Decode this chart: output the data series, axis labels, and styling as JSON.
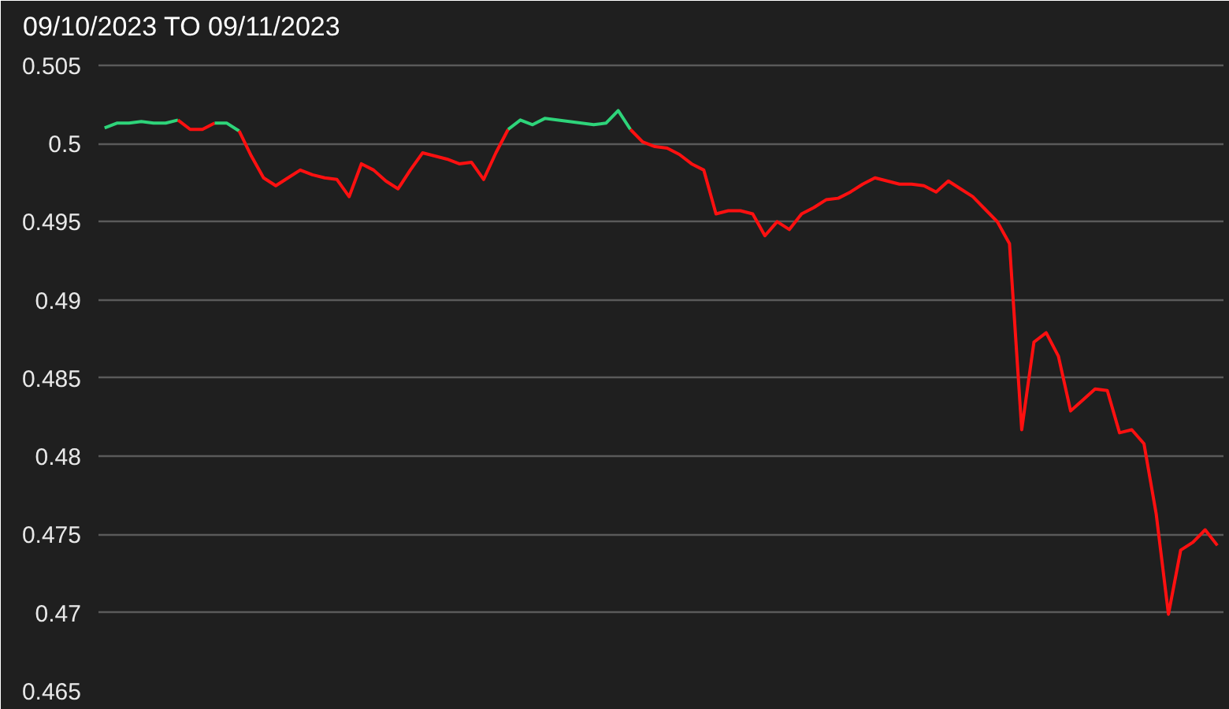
{
  "chart_data": {
    "type": "line",
    "title": "09/10/2023 TO 09/11/2023",
    "categories": [
      null,
      null,
      null,
      null,
      null,
      null,
      null,
      null,
      null,
      null,
      null,
      null,
      null,
      null,
      null,
      null,
      null,
      null,
      null,
      null,
      null,
      null,
      null,
      null,
      null,
      null,
      null,
      null,
      null,
      null,
      null,
      null,
      null,
      null,
      null,
      null,
      null,
      null,
      null,
      null,
      null,
      null,
      null,
      null,
      null,
      null,
      null,
      null,
      null,
      null,
      null,
      null,
      null,
      null,
      null,
      null,
      null,
      null,
      null,
      null,
      null,
      null,
      null,
      null,
      null,
      null,
      null,
      null,
      null,
      null,
      null,
      null,
      null,
      null,
      null,
      null,
      null,
      null,
      null,
      null,
      null,
      null,
      null,
      null,
      null,
      null,
      null,
      null,
      null,
      null,
      null,
      null
    ],
    "series": [
      {
        "color": "#2ed47a",
        "values": [
          0.501,
          0.5013,
          0.5013,
          0.5014,
          0.5013,
          0.5013,
          0.5015,
          null,
          null,
          null,
          null,
          null,
          null,
          null,
          null,
          null,
          null,
          null,
          null,
          null,
          null,
          null,
          null,
          null,
          null,
          null,
          null,
          null,
          null,
          null,
          null,
          null,
          null,
          null,
          null,
          null,
          null,
          null,
          null,
          null,
          null,
          null,
          null,
          null,
          null,
          null,
          null,
          null,
          null,
          null,
          null,
          null,
          null,
          null,
          null,
          null,
          null,
          null,
          null,
          null,
          null,
          null,
          null,
          null,
          null,
          null,
          null,
          null,
          null,
          null,
          null,
          null,
          null,
          null,
          null,
          null,
          null,
          null,
          null,
          null,
          null,
          null,
          null,
          null,
          null,
          null,
          null,
          null,
          null,
          null,
          null,
          null
        ]
      },
      {
        "color": "#ff1010",
        "values": [
          null,
          null,
          null,
          null,
          null,
          null,
          0.5015,
          0.5009,
          0.5009,
          0.5013,
          null,
          null,
          null,
          null,
          null,
          null,
          null,
          null,
          null,
          null,
          null,
          null,
          null,
          null,
          null,
          null,
          null,
          null,
          null,
          null,
          null,
          null,
          null,
          null,
          null,
          null,
          null,
          null,
          null,
          null,
          null,
          null,
          null,
          null,
          null,
          null,
          null,
          null,
          null,
          null,
          null,
          null,
          null,
          null,
          null,
          null,
          null,
          null,
          null,
          null,
          null,
          null,
          null,
          null,
          null,
          null,
          null,
          null,
          null,
          null,
          null,
          null,
          null,
          null,
          null,
          null,
          null,
          null,
          null,
          null,
          null,
          null,
          null,
          null,
          null,
          null,
          null,
          null,
          null,
          null,
          null,
          null
        ]
      },
      {
        "color": "#2ed47a",
        "values": [
          null,
          null,
          null,
          null,
          null,
          null,
          null,
          null,
          null,
          0.5013,
          0.5013,
          0.5008,
          null,
          null,
          null,
          null,
          null,
          null,
          null,
          null,
          null,
          null,
          null,
          null,
          null,
          null,
          null,
          null,
          null,
          null,
          null,
          null,
          null,
          null,
          null,
          null,
          null,
          null,
          null,
          null,
          null,
          null,
          null,
          null,
          null,
          null,
          null,
          null,
          null,
          null,
          null,
          null,
          null,
          null,
          null,
          null,
          null,
          null,
          null,
          null,
          null,
          null,
          null,
          null,
          null,
          null,
          null,
          null,
          null,
          null,
          null,
          null,
          null,
          null,
          null,
          null,
          null,
          null,
          null,
          null,
          null,
          null,
          null,
          null,
          null,
          null,
          null,
          null,
          null,
          null,
          null,
          null
        ]
      },
      {
        "color": "#ff1010",
        "values": [
          null,
          null,
          null,
          null,
          null,
          null,
          null,
          null,
          null,
          null,
          null,
          0.5008,
          0.4992,
          0.4978,
          0.4973,
          0.4978,
          0.4983,
          0.498,
          0.4978,
          0.4977,
          0.4966,
          0.4987,
          0.4983,
          0.4976,
          0.4971,
          0.4983,
          0.4994,
          0.4992,
          0.499,
          0.4987,
          0.4988,
          0.4977,
          0.4994,
          0.5009,
          null,
          null,
          null,
          null,
          null,
          null,
          null,
          null,
          null,
          null,
          null,
          null,
          null,
          null,
          null,
          null,
          null,
          null,
          null,
          null,
          null,
          null,
          null,
          null,
          null,
          null,
          null,
          null,
          null,
          null,
          null,
          null,
          null,
          null,
          null,
          null,
          null,
          null,
          null,
          null,
          null,
          null,
          null,
          null,
          null,
          null,
          null,
          null,
          null,
          null,
          null,
          null,
          null,
          null,
          null,
          null,
          null,
          null
        ]
      },
      {
        "color": "#2ed47a",
        "values": [
          null,
          null,
          null,
          null,
          null,
          null,
          null,
          null,
          null,
          null,
          null,
          null,
          null,
          null,
          null,
          null,
          null,
          null,
          null,
          null,
          null,
          null,
          null,
          null,
          null,
          null,
          null,
          null,
          null,
          null,
          null,
          null,
          null,
          0.5009,
          0.5015,
          0.5012,
          0.5016,
          0.5015,
          0.5014,
          0.5013,
          0.5012,
          0.5013,
          0.5021,
          0.5009,
          null,
          null,
          null,
          null,
          null,
          null,
          null,
          null,
          null,
          null,
          null,
          null,
          null,
          null,
          null,
          null,
          null,
          null,
          null,
          null,
          null,
          null,
          null,
          null,
          null,
          null,
          null,
          null,
          null,
          null,
          null,
          null,
          null,
          null,
          null,
          null,
          null,
          null,
          null,
          null,
          null,
          null,
          null,
          null,
          null,
          null,
          null,
          null
        ]
      },
      {
        "color": "#ff1010",
        "values": [
          null,
          null,
          null,
          null,
          null,
          null,
          null,
          null,
          null,
          null,
          null,
          null,
          null,
          null,
          null,
          null,
          null,
          null,
          null,
          null,
          null,
          null,
          null,
          null,
          null,
          null,
          null,
          null,
          null,
          null,
          null,
          null,
          null,
          null,
          null,
          null,
          null,
          null,
          null,
          null,
          null,
          null,
          null,
          0.5009,
          0.5001,
          0.4998,
          0.4997,
          0.4993,
          0.4987,
          0.4983,
          0.4955,
          0.4957,
          0.4957,
          0.4955,
          0.4941,
          0.495,
          0.4945,
          0.4955,
          0.4959,
          0.4964,
          0.4965,
          0.4969,
          0.4974,
          0.4978,
          0.4976,
          0.4974,
          0.4974,
          0.4973,
          0.4969,
          0.4976,
          0.4971,
          0.4966,
          0.4958,
          0.495,
          0.4936,
          0.4817,
          0.4873,
          0.4879,
          0.4864,
          0.4829,
          0.4836,
          0.4843,
          0.4842,
          0.4815,
          0.4817,
          0.4808,
          0.4763,
          0.4699,
          0.474,
          0.4745,
          0.4753,
          0.4743
        ]
      }
    ],
    "ylim": [
      0.465,
      0.506
    ],
    "yticks": [
      0.465,
      0.47,
      0.475,
      0.48,
      0.485,
      0.49,
      0.495,
      0.5,
      0.505
    ],
    "grid": "y",
    "tick_labels": "y"
  }
}
